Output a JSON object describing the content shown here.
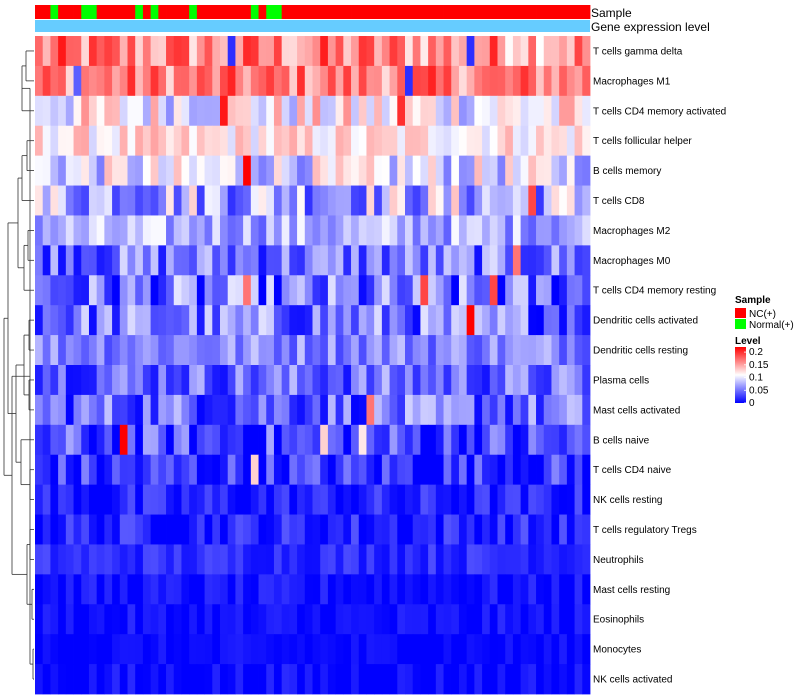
{
  "chart_data": {
    "type": "heatmap",
    "annotation_rows": [
      {
        "label": "Sample",
        "legend_title": "Sample"
      },
      {
        "label": "Gene expression level"
      }
    ],
    "sample_groups": [
      "NC",
      "NC",
      "Normal",
      "NC",
      "NC",
      "NC",
      "Normal",
      "Normal",
      "NC",
      "NC",
      "NC",
      "NC",
      "NC",
      "Normal",
      "NC",
      "Normal",
      "NC",
      "NC",
      "NC",
      "NC",
      "Normal",
      "NC",
      "NC",
      "NC",
      "NC",
      "NC",
      "NC",
      "NC",
      "Normal",
      "NC",
      "Normal",
      "Normal",
      "NC",
      "NC",
      "NC",
      "NC",
      "NC",
      "NC",
      "NC",
      "NC",
      "NC",
      "NC",
      "NC",
      "NC",
      "NC",
      "NC",
      "NC",
      "NC",
      "NC",
      "NC",
      "NC",
      "NC",
      "NC",
      "NC",
      "NC",
      "NC",
      "NC",
      "NC",
      "NC",
      "NC",
      "NC",
      "NC",
      "NC",
      "NC",
      "NC",
      "NC",
      "NC",
      "NC",
      "NC",
      "NC",
      "NC",
      "NC"
    ],
    "group_legend": [
      {
        "key": "NC",
        "label": "NC(+)",
        "color": "#ff0000"
      },
      {
        "key": "Normal",
        "label": "Normal(+)",
        "color": "#00ff00"
      }
    ],
    "expression_level_color": "#66ccff",
    "rows": [
      {
        "label": "T cells gamma delta",
        "base": 0.16,
        "spread": 0.1
      },
      {
        "label": "Macrophages M1",
        "base": 0.165,
        "spread": 0.08
      },
      {
        "label": "T cells CD4 memory activated",
        "base": 0.11,
        "spread": 0.1
      },
      {
        "label": "T cells follicular helper",
        "base": 0.12,
        "spread": 0.06
      },
      {
        "label": "B cells memory",
        "base": 0.095,
        "spread": 0.09
      },
      {
        "label": "T cells CD8",
        "base": 0.08,
        "spread": 0.12
      },
      {
        "label": "Macrophages M2",
        "base": 0.075,
        "spread": 0.07
      },
      {
        "label": "Macrophages M0",
        "base": 0.05,
        "spread": 0.09
      },
      {
        "label": "T cells CD4 memory resting",
        "base": 0.04,
        "spread": 0.12
      },
      {
        "label": "Dendritic cells activated",
        "base": 0.05,
        "spread": 0.1
      },
      {
        "label": "Dendritic cells resting",
        "base": 0.06,
        "spread": 0.06
      },
      {
        "label": "Plasma cells",
        "base": 0.045,
        "spread": 0.08
      },
      {
        "label": "Mast cells activated",
        "base": 0.045,
        "spread": 0.09
      },
      {
        "label": "B cells naive",
        "base": 0.025,
        "spread": 0.1
      },
      {
        "label": "T cells CD4 naive",
        "base": 0.02,
        "spread": 0.08
      },
      {
        "label": "NK cells resting",
        "base": 0.012,
        "spread": 0.05
      },
      {
        "label": "T cells regulatory  Tregs",
        "base": 0.015,
        "spread": 0.05
      },
      {
        "label": "Neutrophils",
        "base": 0.02,
        "spread": 0.03
      },
      {
        "label": "Mast cells resting",
        "base": 0.006,
        "spread": 0.03
      },
      {
        "label": "Eosinophils",
        "base": 0.004,
        "spread": 0.03
      },
      {
        "label": "Monocytes",
        "base": 0.003,
        "spread": 0.02
      },
      {
        "label": "NK cells activated",
        "base": 0.004,
        "spread": 0.03
      }
    ],
    "hotspots": [
      {
        "row": 2,
        "col": 24,
        "value": 0.21
      },
      {
        "row": 2,
        "col": 47,
        "value": 0.2
      },
      {
        "row": 4,
        "col": 27,
        "value": 0.22
      },
      {
        "row": 5,
        "col": 64,
        "value": 0.19
      },
      {
        "row": 7,
        "col": 62,
        "value": 0.17
      },
      {
        "row": 8,
        "col": 50,
        "value": 0.19
      },
      {
        "row": 8,
        "col": 59,
        "value": 0.19
      },
      {
        "row": 8,
        "col": 27,
        "value": 0.17
      },
      {
        "row": 9,
        "col": 56,
        "value": 0.22
      },
      {
        "row": 12,
        "col": 43,
        "value": 0.17
      },
      {
        "row": 13,
        "col": 11,
        "value": 0.22
      },
      {
        "row": 13,
        "col": 37,
        "value": 0.13
      },
      {
        "row": 13,
        "col": 42,
        "value": 0.12
      },
      {
        "row": 14,
        "col": 28,
        "value": 0.13
      },
      {
        "row": 1,
        "col": 5,
        "value": 0.04
      },
      {
        "row": 1,
        "col": 48,
        "value": 0.02
      },
      {
        "row": 0,
        "col": 56,
        "value": 0.02
      },
      {
        "row": 0,
        "col": 25,
        "value": 0.02
      }
    ],
    "legend": {
      "title": "Level",
      "ticks": [
        0.2,
        0.15,
        0.1,
        0.05,
        0
      ],
      "min": 0,
      "max": 0.22,
      "colors": {
        "low": "#0000ff",
        "mid": "#ffffff",
        "high": "#ff0000",
        "mid_value": 0.11
      }
    }
  }
}
